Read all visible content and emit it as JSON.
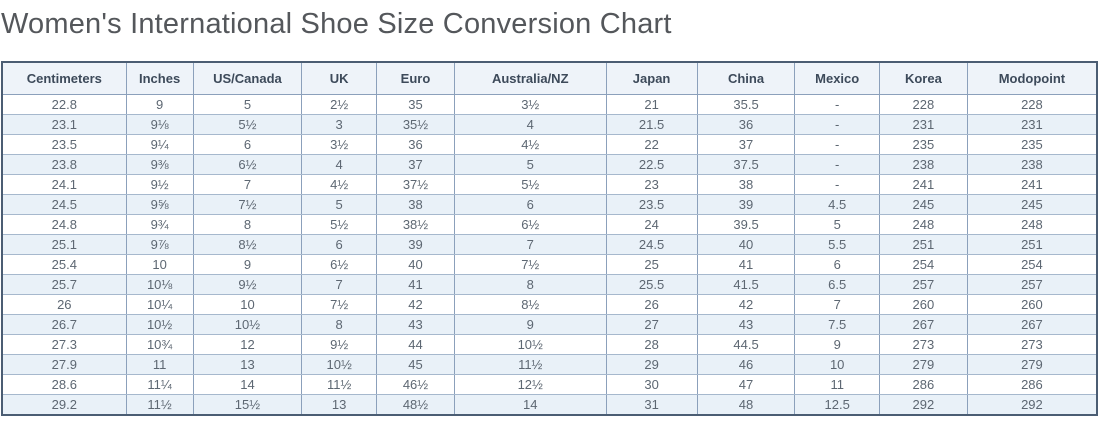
{
  "page": {
    "title": "Women's International Shoe Size Conversion Chart"
  },
  "colors": {
    "outer_border": "#4b5d73",
    "cell_border_vertical": "#8ba0bb",
    "cell_border_horizontal": "#a6b8cd",
    "header_bg": "#eef3f9",
    "header_text": "#3d4a5a",
    "row_alt_bg": "#e9f1f8",
    "row_bg": "#ffffff",
    "cell_text": "#5d6772",
    "title_text": "#54575b"
  },
  "chart_data": {
    "type": "table",
    "title": "Women's International Shoe Size Conversion Chart",
    "columns": [
      "Centimeters",
      "Inches",
      "US/Canada",
      "UK",
      "Euro",
      "Australia/NZ",
      "Japan",
      "China",
      "Mexico",
      "Korea",
      "Modopoint"
    ],
    "rows": [
      [
        "22.8",
        "9",
        "5",
        "2½",
        "35",
        "3½",
        "21",
        "35.5",
        "-",
        "228",
        "228"
      ],
      [
        "23.1",
        "9⅛",
        "5½",
        "3",
        "35½",
        "4",
        "21.5",
        "36",
        "-",
        "231",
        "231"
      ],
      [
        "23.5",
        "9¼",
        "6",
        "3½",
        "36",
        "4½",
        "22",
        "37",
        "-",
        "235",
        "235"
      ],
      [
        "23.8",
        "9⅜",
        "6½",
        "4",
        "37",
        "5",
        "22.5",
        "37.5",
        "-",
        "238",
        "238"
      ],
      [
        "24.1",
        "9½",
        "7",
        "4½",
        "37½",
        "5½",
        "23",
        "38",
        "-",
        "241",
        "241"
      ],
      [
        "24.5",
        "9⅝",
        "7½",
        "5",
        "38",
        "6",
        "23.5",
        "39",
        "4.5",
        "245",
        "245"
      ],
      [
        "24.8",
        "9¾",
        "8",
        "5½",
        "38½",
        "6½",
        "24",
        "39.5",
        "5",
        "248",
        "248"
      ],
      [
        "25.1",
        "9⅞",
        "8½",
        "6",
        "39",
        "7",
        "24.5",
        "40",
        "5.5",
        "251",
        "251"
      ],
      [
        "25.4",
        "10",
        "9",
        "6½",
        "40",
        "7½",
        "25",
        "41",
        "6",
        "254",
        "254"
      ],
      [
        "25.7",
        "10⅛",
        "9½",
        "7",
        "41",
        "8",
        "25.5",
        "41.5",
        "6.5",
        "257",
        "257"
      ],
      [
        "26",
        "10¼",
        "10",
        "7½",
        "42",
        "8½",
        "26",
        "42",
        "7",
        "260",
        "260"
      ],
      [
        "26.7",
        "10½",
        "10½",
        "8",
        "43",
        "9",
        "27",
        "43",
        "7.5",
        "267",
        "267"
      ],
      [
        "27.3",
        "10¾",
        "12",
        "9½",
        "44",
        "10½",
        "28",
        "44.5",
        "9",
        "273",
        "273"
      ],
      [
        "27.9",
        "11",
        "13",
        "10½",
        "45",
        "11½",
        "29",
        "46",
        "10",
        "279",
        "279"
      ],
      [
        "28.6",
        "11¼",
        "14",
        "11½",
        "46½",
        "12½",
        "30",
        "47",
        "11",
        "286",
        "286"
      ],
      [
        "29.2",
        "11½",
        "15½",
        "13",
        "48½",
        "14",
        "31",
        "48",
        "12.5",
        "292",
        "292"
      ]
    ],
    "column_widths_pct": [
      11.3,
      6.1,
      9.9,
      6.8,
      7.1,
      13.8,
      8.3,
      8.9,
      7.7,
      8.0,
      11.8
    ]
  }
}
